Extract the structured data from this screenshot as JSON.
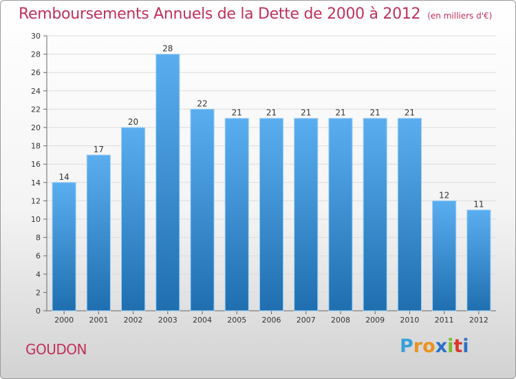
{
  "title": "Remboursements Annuels de la Dette de 2000 à 2012",
  "subtitle": "(en milliers d'€)",
  "town": "GOUDON",
  "logo": {
    "text": "Proxiti",
    "letter_colors": [
      "#3aa0d9",
      "#e8931f",
      "#e8931f",
      "#2a72c7",
      "#7cbd2a",
      "#d9372f",
      "#2a72c7"
    ]
  },
  "colors": {
    "bar_light": "#5aaef0",
    "bar_dark": "#1f6fb0",
    "title": "#c0305a"
  },
  "chart_data": {
    "type": "bar",
    "categories": [
      "2000",
      "2001",
      "2002",
      "2003",
      "2004",
      "2005",
      "2006",
      "2007",
      "2008",
      "2009",
      "2010",
      "2011",
      "2012"
    ],
    "values": [
      14,
      17,
      20,
      28,
      22,
      21,
      21,
      21,
      21,
      21,
      21,
      12,
      11
    ],
    "data_labels": [
      "14",
      "17",
      "20",
      "28",
      "22",
      "21",
      "21",
      "21",
      "21",
      "21",
      "21",
      "12",
      "11"
    ],
    "title": "Remboursements Annuels de la Dette de 2000 à 2012",
    "subtitle": "(en milliers d'€)",
    "xlabel": "",
    "ylabel": "",
    "ylim": [
      0,
      30
    ],
    "yticks": [
      "0",
      "2",
      "4",
      "6",
      "8",
      "10",
      "12",
      "14",
      "16",
      "18",
      "20",
      "22",
      "24",
      "26",
      "28",
      "30"
    ],
    "grid": true,
    "legend": "none"
  }
}
